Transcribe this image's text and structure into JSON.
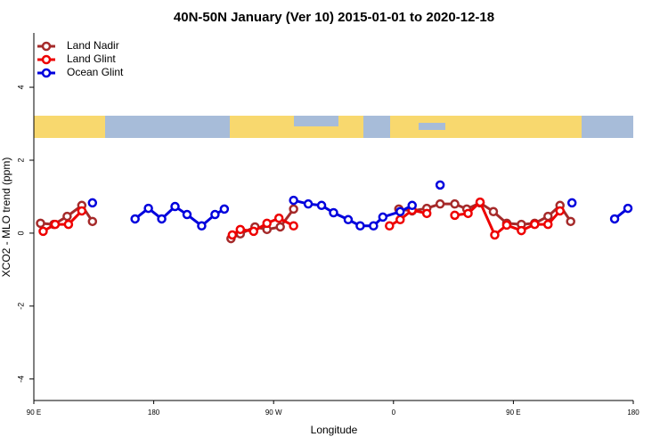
{
  "chart_data": {
    "type": "line",
    "title": "40N-50N January (Ver 10)   2015-01-01 to 2020-12-18",
    "x_label": "Longitude",
    "y_label": "XCO2 - MLO trend (ppm)",
    "xlim": [
      90,
      540
    ],
    "xticks": [
      {
        "value": 90,
        "label": "90 E"
      },
      {
        "value": 180,
        "label": "180"
      },
      {
        "value": 270,
        "label": "90 W"
      },
      {
        "value": 360,
        "label": "0"
      },
      {
        "value": 450,
        "label": "90 E"
      },
      {
        "value": 540,
        "label": "180"
      }
    ],
    "ylim": [
      -4.59,
      5.49
    ],
    "yticks": [
      -4,
      -2,
      0,
      2,
      4
    ],
    "legend": "top-left",
    "series": [
      {
        "name": "Land Nadir",
        "color": "#a52a2a",
        "x": [
          95,
          105,
          115,
          126,
          134,
          null,
          238,
          245,
          256,
          265,
          275,
          285,
          null,
          364,
          374,
          385,
          395,
          406,
          415,
          425,
          435,
          445,
          456,
          466,
          476,
          485,
          493
        ],
        "values": [
          0.27,
          0.24,
          0.46,
          0.76,
          0.32,
          null,
          -0.15,
          -0.02,
          0.17,
          0.1,
          0.17,
          0.66,
          null,
          0.66,
          0.61,
          0.68,
          0.8,
          0.8,
          0.66,
          0.83,
          0.59,
          0.27,
          0.24,
          0.27,
          0.46,
          0.76,
          0.32
        ]
      },
      {
        "name": "Land Glint",
        "color": "#ee0000",
        "x": [
          97,
          106,
          116,
          126,
          null,
          239,
          245,
          255,
          265,
          274,
          285,
          null,
          357,
          365,
          374,
          385,
          null,
          406,
          416,
          425,
          436,
          445,
          456,
          466,
          476,
          485
        ],
        "values": [
          0.05,
          0.24,
          0.24,
          0.61,
          null,
          -0.05,
          0.1,
          0.05,
          0.27,
          0.41,
          0.2,
          null,
          0.2,
          0.37,
          0.63,
          0.54,
          null,
          0.49,
          0.54,
          0.85,
          -0.05,
          0.22,
          0.07,
          0.24,
          0.24,
          0.61
        ]
      },
      {
        "name": "Ocean Glint",
        "color": "#0000dd",
        "x": [
          134,
          null,
          166,
          176,
          186,
          196,
          205,
          216,
          226,
          233,
          null,
          285,
          296,
          306,
          315,
          326,
          335,
          345,
          352,
          365,
          374,
          null,
          395,
          null,
          494,
          null,
          526,
          536
        ],
        "values": [
          0.83,
          null,
          0.39,
          0.68,
          0.39,
          0.73,
          0.51,
          0.2,
          0.51,
          0.66,
          null,
          0.9,
          0.8,
          0.76,
          0.56,
          0.37,
          0.2,
          0.2,
          0.44,
          0.59,
          0.76,
          null,
          1.32,
          null,
          0.83,
          null,
          0.39,
          0.68
        ]
      }
    ]
  }
}
